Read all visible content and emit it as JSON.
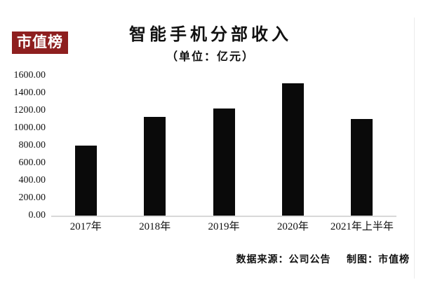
{
  "badge": {
    "label": "市值榜",
    "bg_color": "#8e1f1f",
    "text_color": "#ffffff"
  },
  "header": {
    "title": "智能手机分部收入",
    "subtitle": "（单位：亿元）"
  },
  "footer": {
    "source_label": "数据来源：公司公告",
    "credit_label": "制图：市值榜"
  },
  "chart_data": {
    "type": "bar",
    "title": "智能手机分部收入",
    "subtitle": "（单位：亿元）",
    "categories": [
      "2017年",
      "2018年",
      "2019年",
      "2020年",
      "2021年上半年"
    ],
    "values": [
      800,
      1130,
      1220,
      1510,
      1100
    ],
    "xlabel": "",
    "ylabel": "",
    "ylim": [
      0,
      1600
    ],
    "ytick_step": 200,
    "ytick_labels": [
      "0.00",
      "200.00",
      "400.00",
      "600.00",
      "800.00",
      "1000.00",
      "1200.00",
      "1400.00",
      "1600.00"
    ],
    "bar_color": "#0a0a0a",
    "axis_line_color": "#d8d8d8",
    "grid": false,
    "legend": false
  }
}
